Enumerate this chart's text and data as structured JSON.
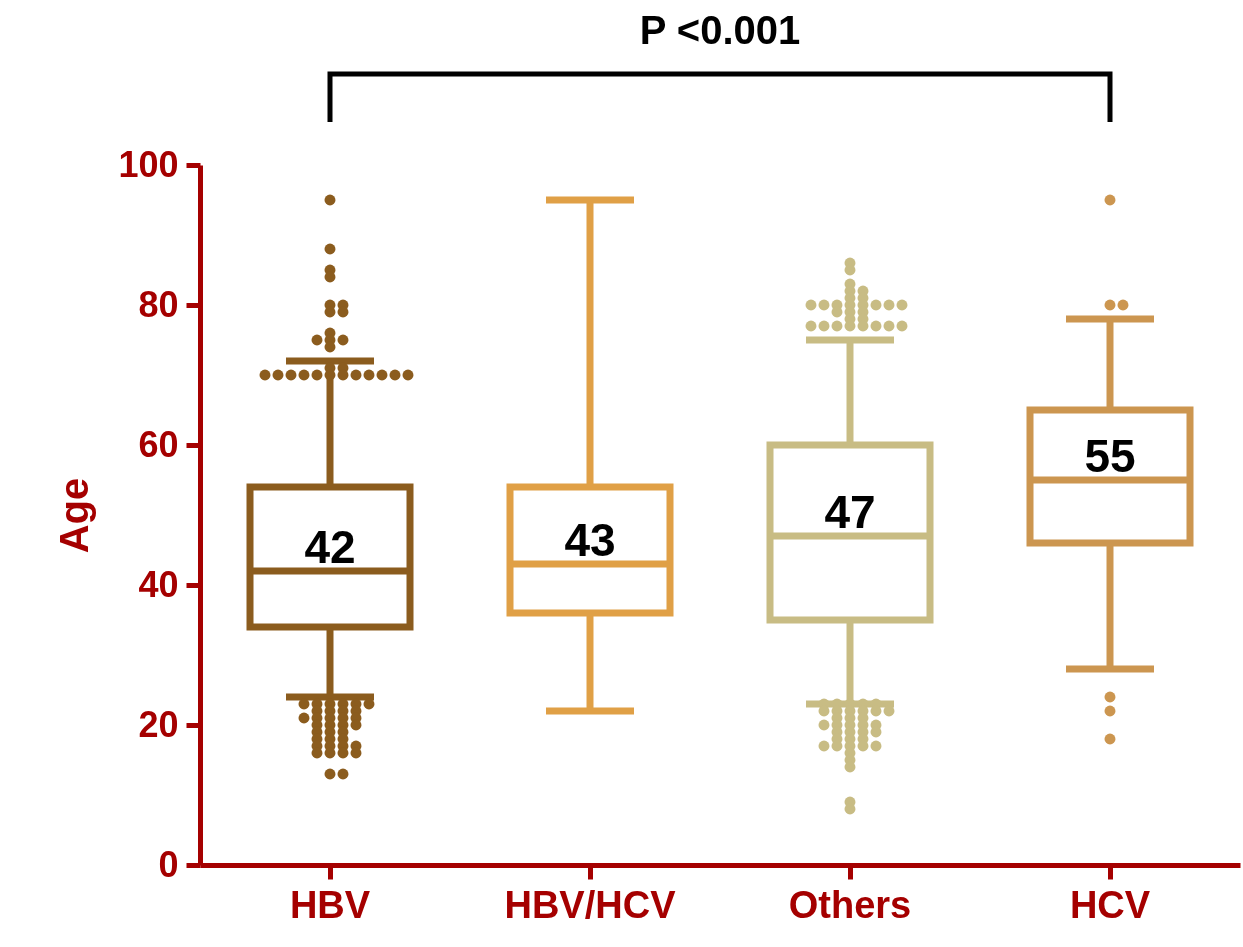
{
  "chart_data": {
    "type": "box",
    "ylabel": "Age",
    "categories": [
      "HBV",
      "HBV/HCV",
      "Others",
      "HCV"
    ],
    "colors": [
      "#8b5c1e",
      "#e0a046",
      "#c8bc84",
      "#cc9650"
    ],
    "boxes": [
      {
        "low": 24,
        "q1": 34,
        "median": 42,
        "q3": 54,
        "high": 72,
        "outliers": [
          95,
          88,
          85,
          84,
          80,
          80,
          79,
          79,
          76,
          75,
          75,
          75,
          74,
          71,
          71,
          70,
          70,
          70,
          70,
          70,
          70,
          70,
          70,
          70,
          70,
          70,
          70,
          23,
          23,
          23,
          23,
          23,
          23,
          22,
          22,
          22,
          22,
          21,
          21,
          21,
          21,
          21,
          20,
          20,
          20,
          20,
          19,
          19,
          19,
          18,
          18,
          18,
          17,
          17,
          17,
          17,
          16,
          16,
          16,
          16,
          13,
          13
        ]
      },
      {
        "low": 22,
        "q1": 36,
        "median": 43,
        "q3": 54,
        "high": 95
      },
      {
        "low": 23,
        "q1": 35,
        "median": 47,
        "q3": 60,
        "high": 75,
        "outliers": [
          86,
          85,
          83,
          82,
          82,
          81,
          81,
          80,
          80,
          80,
          80,
          80,
          80,
          80,
          80,
          79,
          79,
          79,
          78,
          78,
          77,
          77,
          77,
          77,
          77,
          77,
          77,
          77,
          23,
          23,
          23,
          23,
          23,
          22,
          22,
          22,
          22,
          22,
          22,
          21,
          21,
          21,
          20,
          20,
          20,
          20,
          20,
          19,
          19,
          19,
          19,
          18,
          18,
          18,
          17,
          17,
          17,
          17,
          17,
          16,
          15,
          14,
          9,
          8
        ]
      },
      {
        "low": 28,
        "q1": 46,
        "median": 55,
        "q3": 65,
        "high": 78,
        "outliers": [
          95,
          80,
          80,
          24,
          22,
          18
        ]
      }
    ],
    "ylim": [
      0,
      100
    ],
    "yticks": [
      0,
      20,
      40,
      60,
      80,
      100
    ],
    "grid": false,
    "annotations": [
      "P <0.001",
      {
        "text": "42",
        "x": "HBV",
        "y": 42
      },
      {
        "text": "43",
        "x": "HBV/HCV",
        "y": 43
      },
      {
        "text": "47",
        "x": "Others",
        "y": 47
      },
      {
        "text": "55",
        "x": "HCV",
        "y": 55
      }
    ]
  }
}
